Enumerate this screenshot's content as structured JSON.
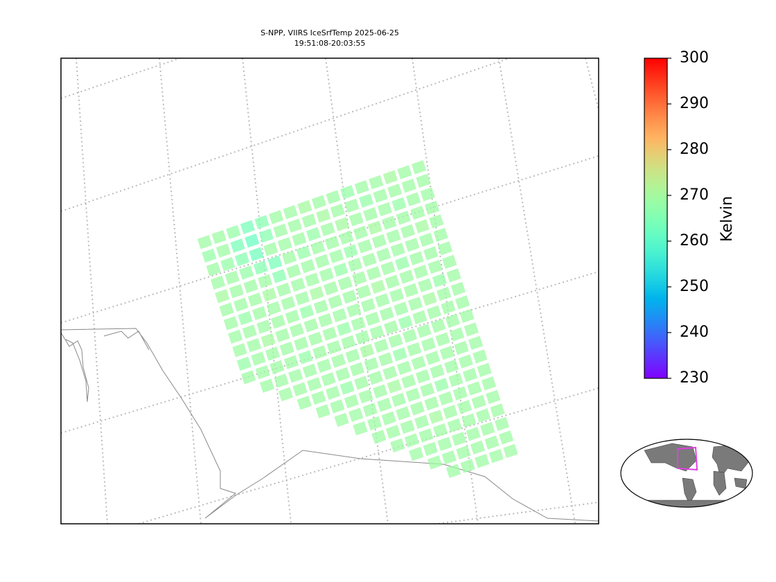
{
  "title": [
    "S-NPP, VIIRS IceSrfTemp 2025-06-25",
    "19:51:08-20:03:55"
  ],
  "colorbar": {
    "label": "Kelvin",
    "colormap": "rainbow",
    "lim": [
      230,
      300
    ],
    "ticks": [
      230,
      240,
      250,
      260,
      270,
      280,
      290,
      300
    ]
  },
  "swath": {
    "cells": [
      [
        269,
        269,
        268,
        264,
        266,
        269,
        269,
        270,
        269,
        269,
        268,
        269,
        269,
        270,
        269,
        269
      ],
      [
        268,
        269,
        264,
        262,
        266,
        269,
        269,
        269,
        270,
        269,
        269,
        268,
        269,
        269,
        269,
        269
      ],
      [
        269,
        268,
        266,
        263,
        269,
        269,
        269,
        268,
        269,
        270,
        269,
        269,
        269,
        268,
        269,
        269
      ],
      [
        269,
        269,
        268,
        266,
        264,
        269,
        268,
        269,
        269,
        269,
        269,
        270,
        269,
        269,
        269,
        269
      ],
      [
        270,
        269,
        269,
        269,
        266,
        269,
        269,
        269,
        269,
        268,
        269,
        269,
        269,
        269,
        270,
        269
      ],
      [
        269,
        269,
        269,
        270,
        269,
        269,
        269,
        269,
        268,
        269,
        269,
        269,
        269,
        269,
        269,
        269
      ],
      [
        269,
        268,
        269,
        269,
        269,
        269,
        270,
        269,
        269,
        269,
        269,
        269,
        268,
        269,
        269,
        269
      ],
      [
        269,
        269,
        269,
        269,
        269,
        268,
        269,
        269,
        269,
        269,
        270,
        269,
        269,
        269,
        269,
        269
      ],
      [
        269,
        269,
        270,
        269,
        269,
        269,
        269,
        269,
        269,
        269,
        269,
        269,
        269,
        269,
        268,
        269
      ],
      [
        268,
        269,
        269,
        269,
        269,
        269,
        269,
        268,
        269,
        269,
        269,
        269,
        269,
        270,
        269,
        269
      ],
      [
        269,
        269,
        269,
        269,
        268,
        269,
        269,
        269,
        269,
        269,
        269,
        268,
        269,
        269,
        269,
        269
      ],
      [
        null,
        269,
        269,
        269,
        269,
        269,
        269,
        269,
        270,
        269,
        269,
        269,
        269,
        269,
        269,
        269
      ],
      [
        null,
        null,
        269,
        269,
        269,
        269,
        269,
        269,
        269,
        269,
        268,
        269,
        269,
        269,
        269,
        269
      ],
      [
        null,
        null,
        null,
        269,
        269,
        269,
        268,
        269,
        269,
        269,
        269,
        269,
        269,
        269,
        269,
        269
      ],
      [
        null,
        null,
        null,
        null,
        269,
        269,
        269,
        269,
        269,
        270,
        269,
        269,
        269,
        269,
        269,
        269
      ],
      [
        null,
        null,
        null,
        null,
        null,
        269,
        269,
        269,
        269,
        269,
        269,
        269,
        268,
        269,
        269,
        269
      ],
      [
        null,
        null,
        null,
        null,
        null,
        null,
        269,
        269,
        269,
        269,
        269,
        269,
        269,
        269,
        269,
        269
      ],
      [
        null,
        null,
        null,
        null,
        null,
        null,
        null,
        269,
        269,
        269,
        269,
        270,
        269,
        269,
        269,
        269
      ],
      [
        null,
        null,
        null,
        null,
        null,
        null,
        null,
        null,
        269,
        269,
        269,
        269,
        269,
        269,
        269,
        269
      ],
      [
        null,
        null,
        null,
        null,
        null,
        null,
        null,
        null,
        null,
        269,
        269,
        269,
        269,
        269,
        269,
        269
      ],
      [
        null,
        null,
        null,
        null,
        null,
        null,
        null,
        null,
        null,
        null,
        269,
        269,
        269,
        269,
        269,
        269
      ],
      [
        null,
        null,
        null,
        null,
        null,
        null,
        null,
        null,
        null,
        null,
        null,
        269,
        269,
        269,
        269,
        269
      ]
    ]
  }
}
